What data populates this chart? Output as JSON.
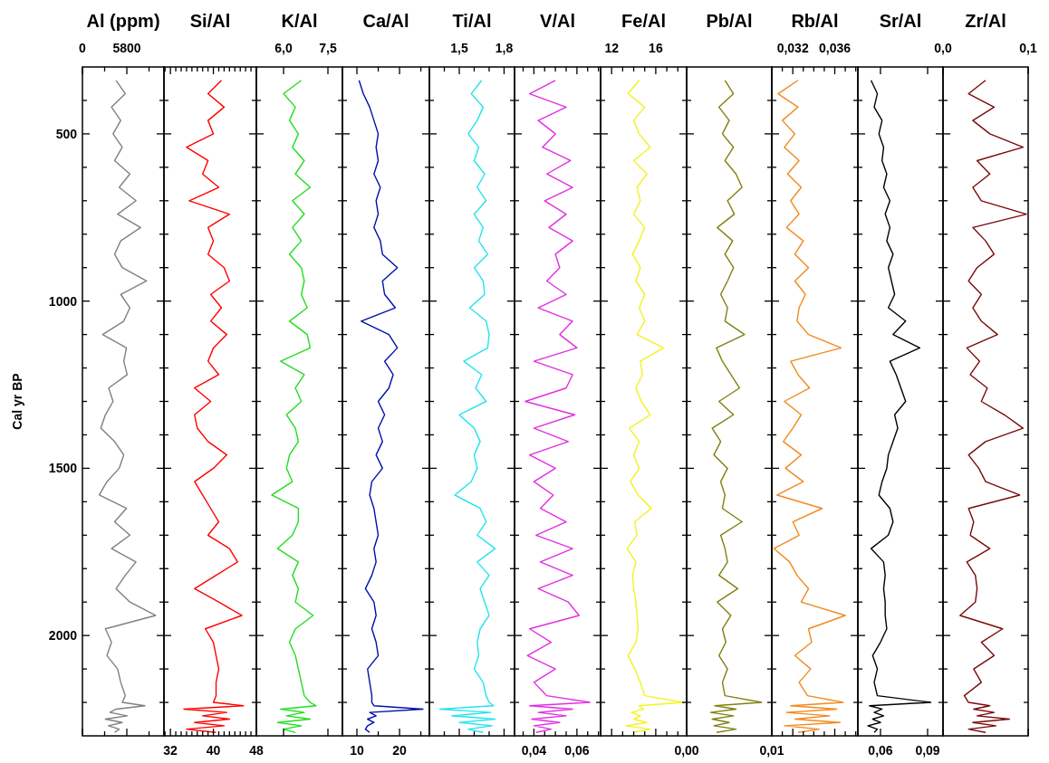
{
  "chart_data": [
    {
      "type": "line",
      "title": "Al (ppm)",
      "ylabel": "Cal yr BP",
      "color": "#808080",
      "xlim": [
        0,
        10650
      ],
      "xticks": [
        0,
        {
          "value": 2900,
          "label": null
        },
        5800,
        {
          "value": 8700,
          "label": null
        }
      ],
      "ylim": [
        2300,
        300
      ],
      "yticks": [
        {
          "value": 400,
          "label": null
        },
        500,
        {
          "value": 600,
          "label": null
        },
        {
          "value": 700,
          "label": null
        },
        {
          "value": 800,
          "label": null
        },
        {
          "value": 900,
          "label": null
        },
        1000,
        {
          "value": 1100,
          "label": null
        },
        {
          "value": 1200,
          "label": null
        },
        {
          "value": 1300,
          "label": null
        },
        {
          "value": 1400,
          "label": null
        },
        1500,
        {
          "value": 1600,
          "label": null
        },
        {
          "value": 1700,
          "label": null
        },
        {
          "value": 1800,
          "label": null
        },
        {
          "value": 1900,
          "label": null
        },
        2000,
        {
          "value": 2100,
          "label": null
        },
        {
          "value": 2200,
          "label": null
        }
      ],
      "x": [
        4400,
        5600,
        3800,
        5000,
        4000,
        5200,
        4200,
        6200,
        4800,
        7000,
        4600,
        7600,
        5000,
        4200,
        5200,
        8370,
        5000,
        6200,
        5400,
        2640,
        5750,
        5400,
        5850,
        3430,
        4000,
        3000,
        2400,
        4200,
        5400,
        4800,
        3200,
        2200,
        5750,
        4200,
        6200,
        3800,
        6990,
        5600,
        4400,
        6200,
        9550,
        3000,
        3800,
        3200,
        4600,
        5000,
        5600,
        5200,
        8170,
        4400,
        3600,
        5850,
        3000,
        5200,
        3400,
        4800,
        4200
      ],
      "values": [
        340,
        380,
        420,
        460,
        500,
        540,
        580,
        620,
        660,
        700,
        740,
        780,
        820,
        860,
        900,
        940,
        980,
        1020,
        1060,
        1100,
        1140,
        1180,
        1220,
        1260,
        1300,
        1340,
        1380,
        1420,
        1460,
        1500,
        1540,
        1580,
        1620,
        1660,
        1700,
        1740,
        1780,
        1820,
        1860,
        1900,
        1940,
        1980,
        2020,
        2060,
        2100,
        2140,
        2180,
        2200,
        2210,
        2220,
        2230,
        2240,
        2250,
        2260,
        2270,
        2280,
        2290
      ]
    },
    {
      "type": "line",
      "title": "Si/Al",
      "tick_labels": "x",
      "color": "#ff0000",
      "xlim": [
        30.8,
        48
      ],
      "xticks": [
        {
          "value": 31,
          "label": null
        },
        32,
        {
          "value": 33,
          "label": null
        },
        {
          "value": 34,
          "label": null
        },
        {
          "value": 35,
          "label": null
        },
        {
          "value": 36,
          "label": null
        },
        {
          "value": 37,
          "label": null
        },
        {
          "value": 38,
          "label": null
        },
        {
          "value": 39,
          "label": null
        },
        40,
        {
          "value": 41,
          "label": null
        },
        {
          "value": 42,
          "label": null
        },
        {
          "value": 43,
          "label": null
        },
        {
          "value": 44,
          "label": null
        },
        {
          "value": 45,
          "label": null
        },
        {
          "value": 46,
          "label": null
        },
        {
          "value": 47,
          "label": null
        },
        48
      ],
      "ylim": [
        2300,
        300
      ],
      "yticks": [
        {
          "value": 400,
          "label": null
        },
        500,
        {
          "value": 600,
          "label": null
        },
        {
          "value": 700,
          "label": null
        },
        {
          "value": 800,
          "label": null
        },
        {
          "value": 900,
          "label": null
        },
        1000,
        {
          "value": 1100,
          "label": null
        },
        {
          "value": 1200,
          "label": null
        },
        {
          "value": 1300,
          "label": null
        },
        {
          "value": 1400,
          "label": null
        },
        1500,
        {
          "value": 1600,
          "label": null
        },
        {
          "value": 1700,
          "label": null
        },
        {
          "value": 1800,
          "label": null
        },
        {
          "value": 1900,
          "label": null
        },
        2000,
        {
          "value": 2100,
          "label": null
        },
        {
          "value": 2200,
          "label": null
        }
      ],
      "x": [
        41.5,
        39,
        42,
        39,
        40,
        35,
        39,
        38,
        41,
        35.5,
        43,
        39,
        40,
        39,
        42,
        43,
        39.5,
        41.5,
        39.5,
        42.5,
        40,
        39,
        41,
        36.5,
        39.5,
        36.5,
        37,
        39,
        42.5,
        40,
        36.5,
        38,
        39.5,
        41,
        39,
        43,
        44.5,
        40.5,
        36.5,
        41,
        45.3,
        38.5,
        40,
        40.5,
        41,
        40.5,
        40.5,
        40,
        45.6,
        34.5,
        42.5,
        38,
        43,
        36.5,
        42,
        35,
        40.5
      ],
      "values": [
        340,
        380,
        420,
        460,
        500,
        540,
        580,
        620,
        660,
        700,
        740,
        780,
        820,
        860,
        900,
        940,
        980,
        1020,
        1060,
        1100,
        1140,
        1180,
        1220,
        1260,
        1300,
        1340,
        1380,
        1420,
        1460,
        1500,
        1540,
        1580,
        1620,
        1660,
        1700,
        1740,
        1780,
        1820,
        1860,
        1900,
        1940,
        1980,
        2020,
        2060,
        2100,
        2140,
        2180,
        2200,
        2210,
        2220,
        2230,
        2240,
        2250,
        2260,
        2270,
        2280,
        2290
      ]
    },
    {
      "type": "line",
      "title": "K/Al",
      "tick_labels": "x",
      "color": "#22dd22",
      "xlim": [
        5.08,
        7.99
      ],
      "xticks": [
        {
          "value": 6,
          "label": "6,0"
        },
        {
          "value": 7.5,
          "label": "7,5"
        }
      ],
      "ylim": [
        2300,
        300
      ],
      "yticks": [
        {
          "value": 400,
          "label": null
        },
        500,
        {
          "value": 600,
          "label": null
        },
        {
          "value": 700,
          "label": null
        },
        {
          "value": 800,
          "label": null
        },
        {
          "value": 900,
          "label": null
        },
        1000,
        {
          "value": 1100,
          "label": null
        },
        {
          "value": 1200,
          "label": null
        },
        {
          "value": 1300,
          "label": null
        },
        {
          "value": 1400,
          "label": null
        },
        1500,
        {
          "value": 1600,
          "label": null
        },
        {
          "value": 1700,
          "label": null
        },
        {
          "value": 1800,
          "label": null
        },
        {
          "value": 1900,
          "label": null
        },
        2000,
        {
          "value": 2100,
          "label": null
        },
        {
          "value": 2200,
          "label": null
        }
      ],
      "x": [
        6.6,
        6.0,
        6.4,
        6.2,
        6.5,
        6.3,
        6.7,
        6.4,
        6.9,
        6.3,
        6.7,
        6.3,
        6.6,
        6.2,
        6.6,
        6.7,
        6.6,
        6.8,
        6.2,
        6.8,
        6.9,
        5.9,
        6.7,
        6.4,
        6.6,
        6.1,
        6.4,
        6.5,
        6.2,
        6.1,
        6.3,
        5.6,
        6.5,
        6.5,
        6.3,
        5.8,
        6.5,
        6.3,
        6.5,
        6.4,
        7.0,
        6.4,
        6.2,
        6.4,
        6.5,
        6.6,
        6.7,
        6.9,
        7.1,
        5.9,
        6.7,
        6.1,
        6.9,
        5.8,
        6.6,
        6.0,
        6.4
      ],
      "values": [
        340,
        380,
        420,
        460,
        500,
        540,
        580,
        620,
        660,
        700,
        740,
        780,
        820,
        860,
        900,
        940,
        980,
        1020,
        1060,
        1100,
        1140,
        1180,
        1220,
        1260,
        1300,
        1340,
        1380,
        1420,
        1460,
        1500,
        1540,
        1580,
        1620,
        1660,
        1700,
        1740,
        1780,
        1820,
        1860,
        1900,
        1940,
        1980,
        2020,
        2060,
        2100,
        2140,
        2180,
        2200,
        2210,
        2220,
        2230,
        2240,
        2250,
        2260,
        2270,
        2280,
        2290
      ]
    },
    {
      "type": "line",
      "title": "Ca/Al",
      "tick_labels": "x",
      "color": "#0010aa",
      "xlim": [
        6.6,
        27
      ],
      "xticks": [
        10,
        {
          "value": 15,
          "label": null
        },
        20,
        {
          "value": 25,
          "label": null
        }
      ],
      "ylim": [
        2300,
        300
      ],
      "yticks": [
        {
          "value": 400,
          "label": null
        },
        500,
        {
          "value": 600,
          "label": null
        },
        {
          "value": 700,
          "label": null
        },
        {
          "value": 800,
          "label": null
        },
        {
          "value": 900,
          "label": null
        },
        1000,
        {
          "value": 1100,
          "label": null
        },
        {
          "value": 1200,
          "label": null
        },
        {
          "value": 1300,
          "label": null
        },
        {
          "value": 1400,
          "label": null
        },
        1500,
        {
          "value": 1600,
          "label": null
        },
        {
          "value": 1700,
          "label": null
        },
        {
          "value": 1800,
          "label": null
        },
        {
          "value": 1900,
          "label": null
        },
        2000,
        {
          "value": 2100,
          "label": null
        },
        {
          "value": 2200,
          "label": null
        }
      ],
      "x": [
        10.5,
        11.5,
        13,
        14,
        15,
        14.5,
        15,
        14,
        15.5,
        14.5,
        15,
        14,
        15.5,
        16,
        19.5,
        16,
        16.5,
        19,
        11,
        17.5,
        19.5,
        16.5,
        18.5,
        17.5,
        15,
        16.5,
        15,
        16,
        14.5,
        16,
        13.5,
        13,
        14,
        14.5,
        15,
        14,
        14.5,
        13.5,
        12,
        14,
        14.5,
        13.5,
        14.5,
        15,
        12.5,
        13,
        13.5,
        13.5,
        14,
        25.5,
        13,
        14.5,
        12.5,
        14,
        12.5,
        12,
        13
      ],
      "values": [
        340,
        380,
        420,
        460,
        500,
        540,
        580,
        620,
        660,
        700,
        740,
        780,
        820,
        860,
        900,
        940,
        980,
        1020,
        1060,
        1100,
        1140,
        1180,
        1220,
        1260,
        1300,
        1340,
        1380,
        1420,
        1460,
        1500,
        1540,
        1580,
        1620,
        1660,
        1700,
        1740,
        1780,
        1820,
        1860,
        1900,
        1940,
        1980,
        2020,
        2060,
        2100,
        2140,
        2180,
        2200,
        2210,
        2220,
        2230,
        2240,
        2250,
        2260,
        2270,
        2280,
        2290
      ]
    },
    {
      "type": "line",
      "title": "Ti/Al",
      "tick_labels": "x",
      "color": "#22e4ee",
      "xlim": [
        1.3,
        1.87
      ],
      "xticks": [
        {
          "value": 1.4,
          "label": null
        },
        {
          "value": 1.5,
          "label": "1,5"
        },
        {
          "value": 1.6,
          "label": null
        },
        {
          "value": 1.7,
          "label": null
        },
        {
          "value": 1.8,
          "label": "1,8"
        }
      ],
      "ylim": [
        2300,
        300
      ],
      "yticks": [
        {
          "value": 400,
          "label": null
        },
        500,
        {
          "value": 600,
          "label": null
        },
        {
          "value": 700,
          "label": null
        },
        {
          "value": 800,
          "label": null
        },
        {
          "value": 900,
          "label": null
        },
        1000,
        {
          "value": 1100,
          "label": null
        },
        {
          "value": 1200,
          "label": null
        },
        {
          "value": 1300,
          "label": null
        },
        {
          "value": 1400,
          "label": null
        },
        1500,
        {
          "value": 1600,
          "label": null
        },
        {
          "value": 1700,
          "label": null
        },
        {
          "value": 1800,
          "label": null
        },
        {
          "value": 1900,
          "label": null
        },
        2000,
        {
          "value": 2100,
          "label": null
        },
        {
          "value": 2200,
          "label": null
        }
      ],
      "x": [
        1.65,
        1.58,
        1.66,
        1.62,
        1.56,
        1.63,
        1.6,
        1.67,
        1.62,
        1.68,
        1.6,
        1.66,
        1.63,
        1.69,
        1.6,
        1.66,
        1.67,
        1.57,
        1.68,
        1.7,
        1.69,
        1.53,
        1.65,
        1.61,
        1.68,
        1.5,
        1.6,
        1.64,
        1.6,
        1.62,
        1.58,
        1.47,
        1.64,
        1.68,
        1.62,
        1.74,
        1.62,
        1.7,
        1.64,
        1.67,
        1.7,
        1.64,
        1.62,
        1.63,
        1.6,
        1.66,
        1.68,
        1.7,
        1.73,
        1.37,
        1.71,
        1.45,
        1.74,
        1.5,
        1.72,
        1.56,
        1.66
      ],
      "values": [
        340,
        380,
        420,
        460,
        500,
        540,
        580,
        620,
        660,
        700,
        740,
        780,
        820,
        860,
        900,
        940,
        980,
        1020,
        1060,
        1100,
        1140,
        1180,
        1220,
        1260,
        1300,
        1340,
        1380,
        1420,
        1460,
        1500,
        1540,
        1580,
        1620,
        1660,
        1700,
        1740,
        1780,
        1820,
        1860,
        1900,
        1940,
        1980,
        2020,
        2060,
        2100,
        2140,
        2180,
        2200,
        2210,
        2220,
        2230,
        2240,
        2250,
        2260,
        2270,
        2280,
        2290
      ]
    },
    {
      "type": "line",
      "title": "V/Al",
      "tick_labels": "x",
      "color": "#e030e0",
      "xlim": [
        0.031,
        0.071
      ],
      "xticks": [
        {
          "value": 0.035,
          "label": null
        },
        {
          "value": 0.04,
          "label": "0,04"
        },
        {
          "value": 0.045,
          "label": null
        },
        {
          "value": 0.05,
          "label": null
        },
        {
          "value": 0.055,
          "label": null
        },
        {
          "value": 0.06,
          "label": "0,06"
        },
        {
          "value": 0.065,
          "label": null
        },
        {
          "value": 0.07,
          "label": null
        }
      ],
      "ylim": [
        2300,
        300
      ],
      "yticks": [
        {
          "value": 400,
          "label": null
        },
        500,
        {
          "value": 600,
          "label": null
        },
        {
          "value": 700,
          "label": null
        },
        {
          "value": 800,
          "label": null
        },
        {
          "value": 900,
          "label": null
        },
        1000,
        {
          "value": 1100,
          "label": null
        },
        {
          "value": 1200,
          "label": null
        },
        {
          "value": 1300,
          "label": null
        },
        {
          "value": 1400,
          "label": null
        },
        1500,
        {
          "value": 1600,
          "label": null
        },
        {
          "value": 1700,
          "label": null
        },
        {
          "value": 1800,
          "label": null
        },
        {
          "value": 1900,
          "label": null
        },
        2000,
        {
          "value": 2100,
          "label": null
        },
        {
          "value": 2200,
          "label": null
        }
      ],
      "x": [
        0.05,
        0.038,
        0.055,
        0.042,
        0.05,
        0.044,
        0.057,
        0.046,
        0.058,
        0.045,
        0.055,
        0.047,
        0.058,
        0.05,
        0.052,
        0.046,
        0.055,
        0.042,
        0.058,
        0.052,
        0.06,
        0.04,
        0.058,
        0.055,
        0.036,
        0.059,
        0.04,
        0.056,
        0.038,
        0.05,
        0.04,
        0.049,
        0.043,
        0.055,
        0.041,
        0.058,
        0.043,
        0.058,
        0.042,
        0.056,
        0.061,
        0.038,
        0.048,
        0.037,
        0.05,
        0.04,
        0.046,
        0.066,
        0.038,
        0.058,
        0.042,
        0.055,
        0.039,
        0.052,
        0.04,
        0.048,
        0.041
      ],
      "values": [
        340,
        380,
        420,
        460,
        500,
        540,
        580,
        620,
        660,
        700,
        740,
        780,
        820,
        860,
        900,
        940,
        980,
        1020,
        1060,
        1100,
        1140,
        1180,
        1220,
        1260,
        1300,
        1340,
        1380,
        1420,
        1460,
        1500,
        1540,
        1580,
        1620,
        1660,
        1700,
        1740,
        1780,
        1820,
        1860,
        1900,
        1940,
        1980,
        2020,
        2060,
        2100,
        2140,
        2180,
        2200,
        2210,
        2220,
        2230,
        2240,
        2250,
        2260,
        2270,
        2280,
        2290
      ]
    },
    {
      "type": "line",
      "title": "Fe/Al",
      "tick_labels": "x",
      "color": "#f2f222",
      "xlim": [
        11,
        18.8
      ],
      "xticks": [
        12,
        {
          "value": 13,
          "label": null
        },
        {
          "value": 14,
          "label": null
        },
        {
          "value": 15,
          "label": null
        },
        16,
        {
          "value": 17,
          "label": null
        },
        {
          "value": 18,
          "label": null
        }
      ],
      "ylim": [
        2300,
        300
      ],
      "yticks": [
        {
          "value": 400,
          "label": null
        },
        500,
        {
          "value": 600,
          "label": null
        },
        {
          "value": 700,
          "label": null
        },
        {
          "value": 800,
          "label": null
        },
        {
          "value": 900,
          "label": null
        },
        1000,
        {
          "value": 1100,
          "label": null
        },
        {
          "value": 1200,
          "label": null
        },
        {
          "value": 1300,
          "label": null
        },
        {
          "value": 1400,
          "label": null
        },
        1500,
        {
          "value": 1600,
          "label": null
        },
        {
          "value": 1700,
          "label": null
        },
        {
          "value": 1800,
          "label": null
        },
        {
          "value": 1900,
          "label": null
        },
        2000,
        {
          "value": 2100,
          "label": null
        },
        {
          "value": 2200,
          "label": null
        }
      ],
      "x": [
        14.5,
        13.5,
        15,
        14,
        14.5,
        15.5,
        14,
        15.2,
        14.3,
        14.6,
        14,
        15,
        14.5,
        13.9,
        14.6,
        14.2,
        15,
        14.5,
        15,
        14.3,
        16.7,
        14.6,
        14.8,
        14.2,
        14.7,
        15.5,
        13.6,
        14.5,
        14,
        14.5,
        13.7,
        14.4,
        15.6,
        14.1,
        14.3,
        13.4,
        14.2,
        13.9,
        14,
        14.2,
        14.3,
        14.4,
        14.2,
        13.5,
        14.1,
        14.6,
        15,
        18.5,
        14.5,
        14.9,
        13.8,
        14.6,
        14,
        15.2,
        13.3,
        15.5,
        14
      ],
      "values": [
        340,
        380,
        420,
        460,
        500,
        540,
        580,
        620,
        660,
        700,
        740,
        780,
        820,
        860,
        900,
        940,
        980,
        1020,
        1060,
        1100,
        1140,
        1180,
        1220,
        1260,
        1300,
        1340,
        1380,
        1420,
        1460,
        1500,
        1540,
        1580,
        1620,
        1660,
        1700,
        1740,
        1780,
        1820,
        1860,
        1900,
        1940,
        1980,
        2020,
        2060,
        2100,
        2140,
        2180,
        2200,
        2210,
        2220,
        2230,
        2240,
        2250,
        2260,
        2270,
        2280,
        2290
      ]
    },
    {
      "type": "line",
      "title": "Pb/Al",
      "tick_labels": "x",
      "color": "#808010",
      "xlim": [
        0,
        0.01
      ],
      "xticks": [
        {
          "value": 0,
          "label": "0,00"
        },
        {
          "value": 0.01,
          "label": "0,01"
        }
      ],
      "ylim": [
        2300,
        300
      ],
      "yticks": [
        {
          "value": 400,
          "label": null
        },
        500,
        {
          "value": 600,
          "label": null
        },
        {
          "value": 700,
          "label": null
        },
        {
          "value": 800,
          "label": null
        },
        {
          "value": 900,
          "label": null
        },
        1000,
        {
          "value": 1100,
          "label": null
        },
        {
          "value": 1200,
          "label": null
        },
        {
          "value": 1300,
          "label": null
        },
        {
          "value": 1400,
          "label": null
        },
        1500,
        {
          "value": 1600,
          "label": null
        },
        {
          "value": 1700,
          "label": null
        },
        {
          "value": 1800,
          "label": null
        },
        {
          "value": 1900,
          "label": null
        },
        2000,
        {
          "value": 2100,
          "label": null
        },
        {
          "value": 2200,
          "label": null
        }
      ],
      "x": [
        0.0045,
        0.0055,
        0.0038,
        0.005,
        0.0042,
        0.0055,
        0.0045,
        0.0058,
        0.0065,
        0.0048,
        0.0056,
        0.0036,
        0.0054,
        0.0045,
        0.0055,
        0.0048,
        0.004,
        0.0048,
        0.0045,
        0.0068,
        0.0035,
        0.0042,
        0.0052,
        0.0062,
        0.0038,
        0.0055,
        0.003,
        0.004,
        0.0032,
        0.0048,
        0.004,
        0.0045,
        0.0042,
        0.0065,
        0.004,
        0.0045,
        0.0048,
        0.0038,
        0.006,
        0.0036,
        0.0052,
        0.0042,
        0.0046,
        0.0038,
        0.0048,
        0.0042,
        0.0045,
        0.0088,
        0.0033,
        0.0058,
        0.0028,
        0.0055,
        0.003,
        0.005,
        0.0032,
        0.0058,
        0.0035
      ],
      "values": [
        340,
        380,
        420,
        460,
        500,
        540,
        580,
        620,
        660,
        700,
        740,
        780,
        820,
        860,
        900,
        940,
        980,
        1020,
        1060,
        1100,
        1140,
        1180,
        1220,
        1260,
        1300,
        1340,
        1380,
        1420,
        1460,
        1500,
        1540,
        1580,
        1620,
        1660,
        1700,
        1740,
        1780,
        1820,
        1860,
        1900,
        1940,
        1980,
        2020,
        2060,
        2100,
        2140,
        2180,
        2200,
        2210,
        2220,
        2230,
        2240,
        2250,
        2260,
        2270,
        2280,
        2290
      ]
    },
    {
      "type": "line",
      "title": "Rb/Al",
      "tick_labels": "x",
      "color": "#f08a1e",
      "xlim": [
        0.03,
        0.0382
      ],
      "xticks": [
        {
          "value": 0.031,
          "label": null
        },
        {
          "value": 0.032,
          "label": "0,032"
        },
        {
          "value": 0.033,
          "label": null
        },
        {
          "value": 0.034,
          "label": null
        },
        {
          "value": 0.035,
          "label": null
        },
        {
          "value": 0.036,
          "label": "0,036"
        },
        {
          "value": 0.037,
          "label": null
        },
        {
          "value": 0.038,
          "label": null
        }
      ],
      "ylim": [
        2300,
        300
      ],
      "yticks": [
        {
          "value": 400,
          "label": null
        },
        500,
        {
          "value": 600,
          "label": null
        },
        {
          "value": 700,
          "label": null
        },
        {
          "value": 800,
          "label": null
        },
        {
          "value": 900,
          "label": null
        },
        1000,
        {
          "value": 1100,
          "label": null
        },
        {
          "value": 1200,
          "label": null
        },
        {
          "value": 1300,
          "label": null
        },
        {
          "value": 1400,
          "label": null
        },
        1500,
        {
          "value": 1600,
          "label": null
        },
        {
          "value": 1700,
          "label": null
        },
        {
          "value": 1800,
          "label": null
        },
        {
          "value": 1900,
          "label": null
        },
        2000,
        {
          "value": 2100,
          "label": null
        },
        {
          "value": 2200,
          "label": null
        }
      ],
      "x": [
        0.0325,
        0.0306,
        0.0325,
        0.031,
        0.0322,
        0.0312,
        0.0326,
        0.0315,
        0.0328,
        0.0318,
        0.0326,
        0.0314,
        0.033,
        0.0322,
        0.0335,
        0.0322,
        0.0332,
        0.0326,
        0.0324,
        0.0335,
        0.0366,
        0.0318,
        0.0325,
        0.0336,
        0.0312,
        0.0328,
        0.032,
        0.0311,
        0.0328,
        0.0313,
        0.033,
        0.0305,
        0.0348,
        0.032,
        0.0326,
        0.0302,
        0.0317,
        0.0324,
        0.0335,
        0.0328,
        0.037,
        0.0335,
        0.0338,
        0.0322,
        0.0337,
        0.0326,
        0.0334,
        0.0368,
        0.0318,
        0.0362,
        0.0314,
        0.0355,
        0.0322,
        0.0365,
        0.0312,
        0.0345,
        0.0325
      ],
      "values": [
        340,
        380,
        420,
        460,
        500,
        540,
        580,
        620,
        660,
        700,
        740,
        780,
        820,
        860,
        900,
        940,
        980,
        1020,
        1060,
        1100,
        1140,
        1180,
        1220,
        1260,
        1300,
        1340,
        1380,
        1420,
        1460,
        1500,
        1540,
        1580,
        1620,
        1660,
        1700,
        1740,
        1780,
        1820,
        1860,
        1900,
        1940,
        1980,
        2020,
        2060,
        2100,
        2140,
        2180,
        2200,
        2210,
        2220,
        2230,
        2240,
        2250,
        2260,
        2270,
        2280,
        2290
      ]
    },
    {
      "type": "line",
      "title": "Sr/Al",
      "tick_labels": "x",
      "color": "#000000",
      "xlim": [
        0.0456,
        0.0998
      ],
      "xticks": [
        {
          "value": 0.06,
          "label": "0,06"
        },
        {
          "value": 0.09,
          "label": "0,09"
        }
      ],
      "ylim": [
        2300,
        300
      ],
      "yticks": [
        {
          "value": 400,
          "label": null
        },
        500,
        {
          "value": 600,
          "label": null
        },
        {
          "value": 700,
          "label": null
        },
        {
          "value": 800,
          "label": null
        },
        {
          "value": 900,
          "label": null
        },
        1000,
        {
          "value": 1100,
          "label": null
        },
        {
          "value": 1200,
          "label": null
        },
        {
          "value": 1300,
          "label": null
        },
        {
          "value": 1400,
          "label": null
        },
        1500,
        {
          "value": 1600,
          "label": null
        },
        {
          "value": 1700,
          "label": null
        },
        {
          "value": 1800,
          "label": null
        },
        {
          "value": 1900,
          "label": null
        },
        2000,
        {
          "value": 2100,
          "label": null
        },
        {
          "value": 2200,
          "label": null
        }
      ],
      "x": [
        0.054,
        0.058,
        0.056,
        0.061,
        0.059,
        0.062,
        0.061,
        0.064,
        0.062,
        0.066,
        0.063,
        0.066,
        0.064,
        0.068,
        0.065,
        0.067,
        0.069,
        0.065,
        0.076,
        0.068,
        0.085,
        0.066,
        0.07,
        0.073,
        0.076,
        0.069,
        0.071,
        0.068,
        0.065,
        0.064,
        0.061,
        0.059,
        0.066,
        0.068,
        0.065,
        0.054,
        0.062,
        0.063,
        0.062,
        0.063,
        0.063,
        0.064,
        0.06,
        0.055,
        0.058,
        0.056,
        0.058,
        0.092,
        0.053,
        0.061,
        0.056,
        0.062,
        0.055,
        0.06,
        0.052,
        0.058,
        0.056
      ],
      "values": [
        340,
        380,
        420,
        460,
        500,
        540,
        580,
        620,
        660,
        700,
        740,
        780,
        820,
        860,
        900,
        940,
        980,
        1020,
        1060,
        1100,
        1140,
        1180,
        1220,
        1260,
        1300,
        1340,
        1380,
        1420,
        1460,
        1500,
        1540,
        1580,
        1620,
        1660,
        1700,
        1740,
        1780,
        1820,
        1860,
        1900,
        1940,
        1980,
        2020,
        2060,
        2100,
        2140,
        2180,
        2200,
        2210,
        2220,
        2230,
        2240,
        2250,
        2260,
        2270,
        2280,
        2290
      ]
    },
    {
      "type": "line",
      "title": "Zr/Al",
      "tick_labels": "x",
      "color": "#7a0a0a",
      "xlim": [
        0,
        0.1
      ],
      "xticks": [
        {
          "value": 0,
          "label": "0,0"
        },
        {
          "value": 0.1,
          "label": "0,1"
        }
      ],
      "ylim": [
        2300,
        300
      ],
      "yticks": [
        {
          "value": 400,
          "label": null
        },
        500,
        {
          "value": 600,
          "label": null
        },
        {
          "value": 700,
          "label": null
        },
        {
          "value": 800,
          "label": null
        },
        {
          "value": 900,
          "label": null
        },
        1000,
        {
          "value": 1100,
          "label": null
        },
        {
          "value": 1200,
          "label": null
        },
        {
          "value": 1300,
          "label": null
        },
        {
          "value": 1400,
          "label": null
        },
        1500,
        {
          "value": 1600,
          "label": null
        },
        {
          "value": 1700,
          "label": null
        },
        {
          "value": 1800,
          "label": null
        },
        {
          "value": 1900,
          "label": null
        },
        2000,
        {
          "value": 2100,
          "label": null
        },
        {
          "value": 2200,
          "label": null
        }
      ],
      "x": [
        0.05,
        0.03,
        0.06,
        0.035,
        0.055,
        0.094,
        0.04,
        0.055,
        0.035,
        0.045,
        0.098,
        0.035,
        0.05,
        0.06,
        0.04,
        0.03,
        0.045,
        0.035,
        0.045,
        0.064,
        0.028,
        0.043,
        0.032,
        0.052,
        0.045,
        0.072,
        0.094,
        0.05,
        0.03,
        0.042,
        0.05,
        0.09,
        0.03,
        0.036,
        0.032,
        0.055,
        0.028,
        0.038,
        0.04,
        0.038,
        0.02,
        0.07,
        0.045,
        0.06,
        0.036,
        0.045,
        0.025,
        0.03,
        0.055,
        0.036,
        0.06,
        0.04,
        0.078,
        0.035,
        0.062,
        0.03,
        0.05
      ],
      "values": [
        340,
        380,
        420,
        460,
        500,
        540,
        580,
        620,
        660,
        700,
        740,
        780,
        820,
        860,
        900,
        940,
        980,
        1020,
        1060,
        1100,
        1140,
        1180,
        1220,
        1260,
        1300,
        1340,
        1380,
        1420,
        1460,
        1500,
        1540,
        1580,
        1620,
        1660,
        1700,
        1740,
        1780,
        1820,
        1860,
        1900,
        1940,
        1980,
        2020,
        2060,
        2100,
        2140,
        2180,
        2200,
        2210,
        2220,
        2230,
        2240,
        2250,
        2260,
        2270,
        2280,
        2290
      ]
    }
  ]
}
